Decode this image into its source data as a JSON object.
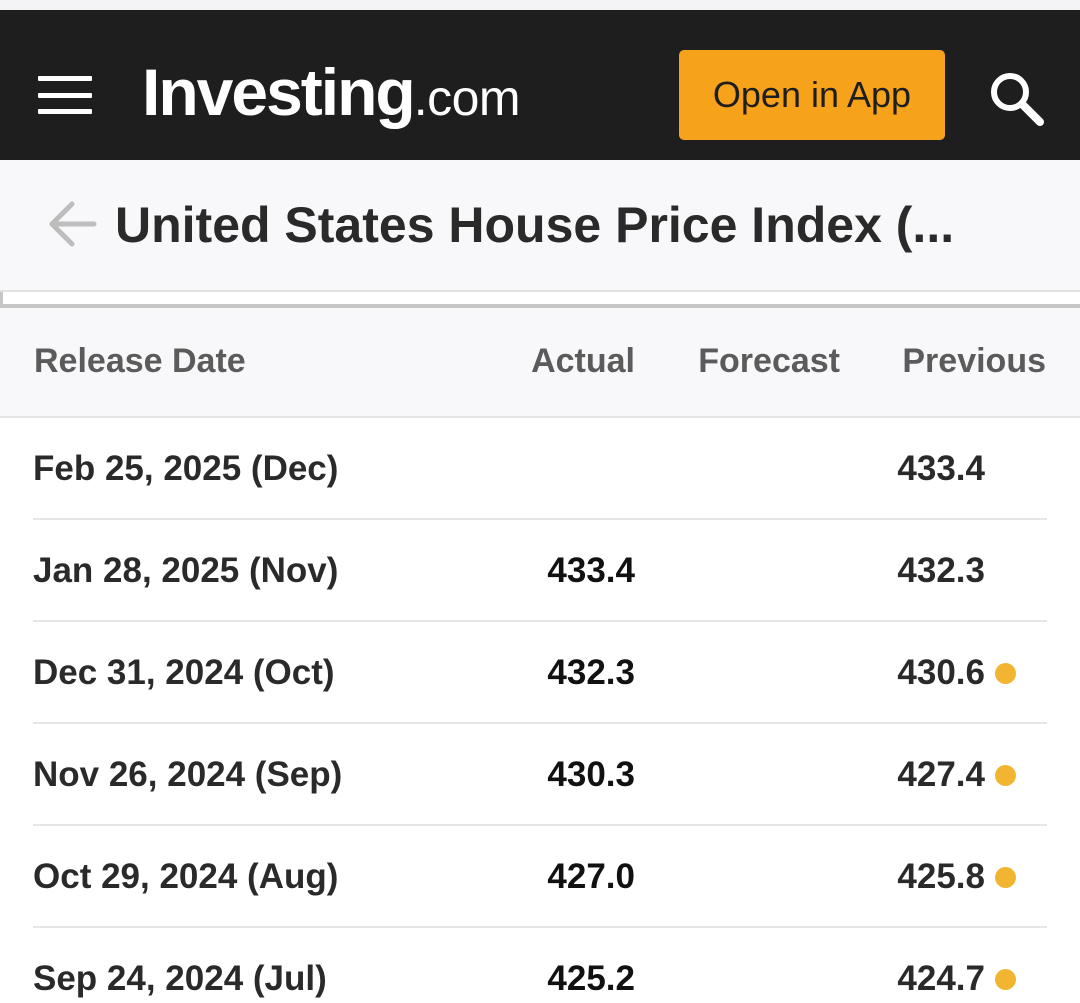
{
  "header": {
    "logo_main": "Investing",
    "logo_suffix": ".com",
    "open_app_label": "Open in App"
  },
  "title_bar": {
    "title": "United States House Price Index (..."
  },
  "table": {
    "headers": {
      "release_date": "Release Date",
      "actual": "Actual",
      "forecast": "Forecast",
      "previous": "Previous"
    },
    "rows": [
      {
        "date": "Feb 25, 2025 (Dec)",
        "actual": "",
        "forecast": "",
        "previous": "433.4",
        "revised": false
      },
      {
        "date": "Jan 28, 2025 (Nov)",
        "actual": "433.4",
        "forecast": "",
        "previous": "432.3",
        "revised": false
      },
      {
        "date": "Dec 31, 2024 (Oct)",
        "actual": "432.3",
        "forecast": "",
        "previous": "430.6",
        "revised": true
      },
      {
        "date": "Nov 26, 2024 (Sep)",
        "actual": "430.3",
        "forecast": "",
        "previous": "427.4",
        "revised": true
      },
      {
        "date": "Oct 29, 2024 (Aug)",
        "actual": "427.0",
        "forecast": "",
        "previous": "425.8",
        "revised": true
      },
      {
        "date": "Sep 24, 2024 (Jul)",
        "actual": "425.2",
        "forecast": "",
        "previous": "424.7",
        "revised": true
      }
    ]
  },
  "colors": {
    "header_bg": "#1e1e1e",
    "accent": "#f7a21b",
    "revised_dot": "#f2b531"
  }
}
